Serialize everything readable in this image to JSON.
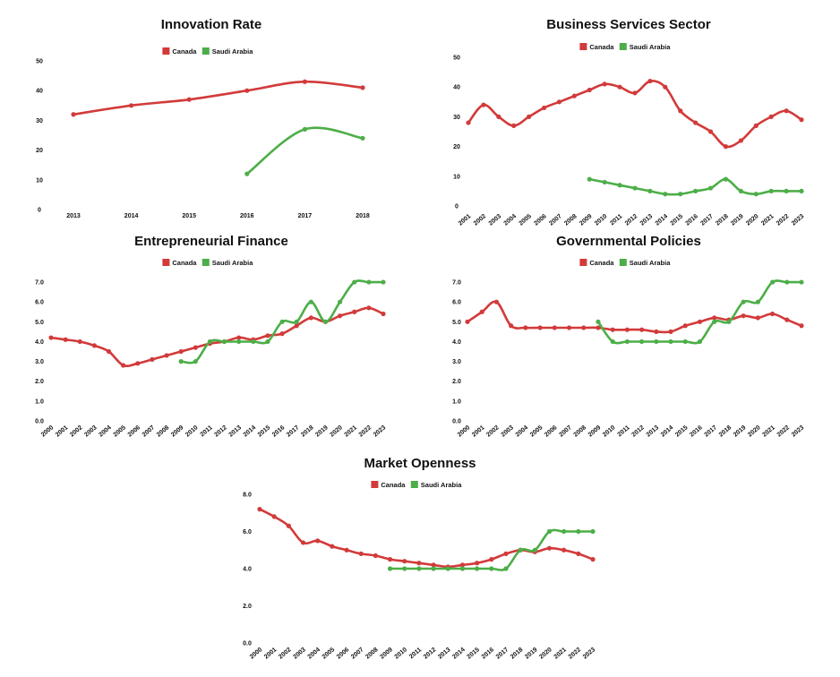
{
  "colors": {
    "canada": "#d23a3a",
    "saudi": "#4cae48"
  },
  "chart_data": [
    {
      "id": "innovation",
      "type": "line",
      "title": "Innovation Rate",
      "x": [
        "2013",
        "2014",
        "2015",
        "2016",
        "2017",
        "2018"
      ],
      "ylim": [
        0,
        50
      ],
      "yticks": [
        0,
        10,
        20,
        30,
        40,
        50
      ],
      "ytick_labels": [
        "0",
        "10",
        "20",
        "30",
        "40",
        "50"
      ],
      "legend": "top-center",
      "grid": false,
      "series": [
        {
          "name": "Canada",
          "values": [
            32,
            35,
            37,
            40,
            43,
            41
          ]
        },
        {
          "name": "Saudi Arabia",
          "values": [
            null,
            null,
            null,
            12,
            27,
            24
          ]
        }
      ]
    },
    {
      "id": "business",
      "type": "line",
      "title": "Business Services Sector",
      "x": [
        "2001",
        "2002",
        "2003",
        "2004",
        "2005",
        "2006",
        "2007",
        "2008",
        "2009",
        "2010",
        "2011",
        "2012",
        "2013",
        "2014",
        "2015",
        "2016",
        "2017",
        "2018",
        "2019",
        "2020",
        "2021",
        "2022",
        "2023"
      ],
      "ylim": [
        0,
        50
      ],
      "yticks": [
        0,
        10,
        20,
        30,
        40,
        50
      ],
      "ytick_labels": [
        "0",
        "10",
        "20",
        "30",
        "40",
        "50"
      ],
      "legend": "top-center",
      "grid": false,
      "series": [
        {
          "name": "Canada",
          "values": [
            28,
            34,
            30,
            27,
            30,
            33,
            35,
            37,
            39,
            41,
            40,
            38,
            42,
            40,
            32,
            28,
            25,
            20,
            22,
            27,
            30,
            32,
            29
          ]
        },
        {
          "name": "Saudi Arabia",
          "values": [
            null,
            null,
            null,
            null,
            null,
            null,
            null,
            null,
            9,
            8,
            7,
            6,
            5,
            4,
            4,
            5,
            6,
            9,
            5,
            4,
            5,
            5,
            5
          ]
        }
      ]
    },
    {
      "id": "finance",
      "type": "line",
      "title": "Entrepreneurial Finance",
      "x": [
        "2000",
        "2001",
        "2002",
        "2003",
        "2004",
        "2005",
        "2006",
        "2007",
        "2008",
        "2009",
        "2010",
        "2011",
        "2012",
        "2013",
        "2014",
        "2015",
        "2016",
        "2017",
        "2018",
        "2019",
        "2020",
        "2021",
        "2022",
        "2023"
      ],
      "ylim": [
        0,
        7.5
      ],
      "yticks": [
        0,
        1,
        2,
        3,
        4,
        5,
        6,
        7
      ],
      "ytick_labels": [
        "0.0",
        "1.0",
        "2.0",
        "3.0",
        "4.0",
        "5.0",
        "6.0",
        "7.0"
      ],
      "legend": "top-center",
      "grid": false,
      "series": [
        {
          "name": "Canada",
          "values": [
            4.2,
            4.1,
            4.0,
            3.8,
            3.5,
            2.8,
            2.9,
            3.1,
            3.3,
            3.5,
            3.7,
            3.9,
            4.0,
            4.2,
            4.1,
            4.3,
            4.4,
            4.8,
            5.2,
            5.0,
            5.3,
            5.5,
            5.7,
            5.4
          ]
        },
        {
          "name": "Saudi Arabia",
          "values": [
            null,
            null,
            null,
            null,
            null,
            null,
            null,
            null,
            null,
            3.0,
            3.0,
            4.0,
            4.0,
            4.0,
            4.0,
            4.0,
            5.0,
            5.0,
            6.0,
            5.0,
            6.0,
            7.0,
            7.0,
            7.0
          ]
        }
      ]
    },
    {
      "id": "policies",
      "type": "line",
      "title": "Governmental Policies",
      "x": [
        "2000",
        "2001",
        "2002",
        "2003",
        "2004",
        "2005",
        "2006",
        "2007",
        "2008",
        "2009",
        "2010",
        "2011",
        "2012",
        "2013",
        "2014",
        "2015",
        "2016",
        "2017",
        "2018",
        "2019",
        "2020",
        "2021",
        "2022",
        "2023"
      ],
      "ylim": [
        0,
        7.5
      ],
      "yticks": [
        0,
        1,
        2,
        3,
        4,
        5,
        6,
        7
      ],
      "ytick_labels": [
        "0.0",
        "1.0",
        "2.0",
        "3.0",
        "4.0",
        "5.0",
        "6.0",
        "7.0"
      ],
      "legend": "top-center",
      "grid": false,
      "series": [
        {
          "name": "Canada",
          "values": [
            5.0,
            5.5,
            6.0,
            4.8,
            4.7,
            4.7,
            4.7,
            4.7,
            4.7,
            4.7,
            4.6,
            4.6,
            4.6,
            4.5,
            4.5,
            4.8,
            5.0,
            5.2,
            5.1,
            5.3,
            5.2,
            5.4,
            5.1,
            4.8
          ]
        },
        {
          "name": "Saudi Arabia",
          "values": [
            null,
            null,
            null,
            null,
            null,
            null,
            null,
            null,
            null,
            5.0,
            4.0,
            4.0,
            4.0,
            4.0,
            4.0,
            4.0,
            4.0,
            5.0,
            5.0,
            6.0,
            6.0,
            7.0,
            7.0,
            7.0
          ]
        }
      ]
    },
    {
      "id": "openness",
      "type": "line",
      "title": "Market Openness",
      "x": [
        "2000",
        "2001",
        "2002",
        "2003",
        "2004",
        "2005",
        "2006",
        "2007",
        "2008",
        "2009",
        "2010",
        "2011",
        "2012",
        "2013",
        "2014",
        "2015",
        "2016",
        "2017",
        "2018",
        "2019",
        "2020",
        "2021",
        "2022",
        "2023"
      ],
      "ylim": [
        0,
        8
      ],
      "yticks": [
        0,
        2,
        4,
        6,
        8
      ],
      "ytick_labels": [
        "0.0",
        "2.0",
        "4.0",
        "6.0",
        "8.0"
      ],
      "legend": "top-center",
      "grid": false,
      "series": [
        {
          "name": "Canada",
          "values": [
            7.2,
            6.8,
            6.3,
            5.4,
            5.5,
            5.2,
            5.0,
            4.8,
            4.7,
            4.5,
            4.4,
            4.3,
            4.2,
            4.1,
            4.2,
            4.3,
            4.5,
            4.8,
            5.0,
            4.9,
            5.1,
            5.0,
            4.8,
            4.5
          ]
        },
        {
          "name": "Saudi Arabia",
          "values": [
            null,
            null,
            null,
            null,
            null,
            null,
            null,
            null,
            null,
            4.0,
            4.0,
            4.0,
            4.0,
            4.0,
            4.0,
            4.0,
            4.0,
            4.0,
            5.0,
            5.0,
            6.0,
            6.0,
            6.0,
            6.0
          ]
        }
      ]
    }
  ]
}
